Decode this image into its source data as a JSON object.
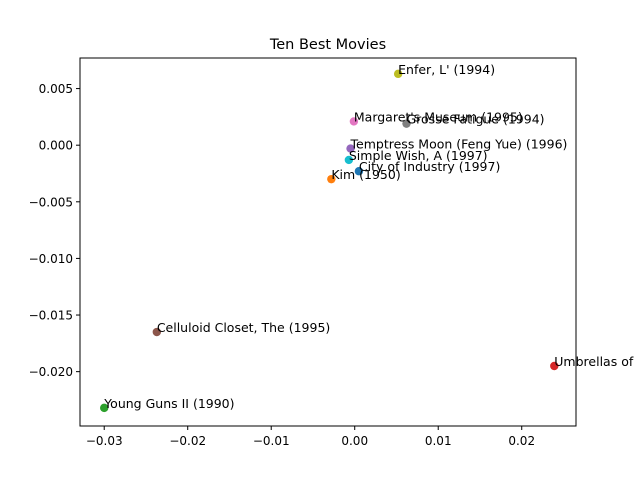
{
  "chart_data": {
    "type": "scatter",
    "title": "Ten Best Movies",
    "xlabel": "",
    "ylabel": "",
    "xlim": [
      -0.0329,
      0.0265
    ],
    "ylim": [
      -0.0248,
      0.0077
    ],
    "xticks": [
      {
        "value": -0.03,
        "label": "−0.03"
      },
      {
        "value": -0.02,
        "label": "−0.02"
      },
      {
        "value": -0.01,
        "label": "−0.01"
      },
      {
        "value": 0.0,
        "label": "0.00"
      },
      {
        "value": 0.01,
        "label": "0.01"
      },
      {
        "value": 0.02,
        "label": "0.02"
      }
    ],
    "yticks": [
      {
        "value": 0.005,
        "label": "0.005"
      },
      {
        "value": 0.0,
        "label": "0.000"
      },
      {
        "value": -0.005,
        "label": "−0.005"
      },
      {
        "value": -0.01,
        "label": "−0.010"
      },
      {
        "value": -0.015,
        "label": "−0.015"
      },
      {
        "value": -0.02,
        "label": "−0.020"
      }
    ],
    "grid": false,
    "legend": "none",
    "points": [
      {
        "label": "City of Industry (1997)",
        "x": 0.0005,
        "y": -0.0023,
        "color": "#1f77b4"
      },
      {
        "label": "Kim (1950)",
        "x": -0.0028,
        "y": -0.003,
        "color": "#ff7f0e"
      },
      {
        "label": "Young Guns II (1990)",
        "x": -0.03,
        "y": -0.0232,
        "color": "#2ca02c"
      },
      {
        "label": "Umbrellas of",
        "x": 0.0239,
        "y": -0.0195,
        "color": "#d62728"
      },
      {
        "label": "Temptress Moon (Feng Yue) (1996)",
        "x": -0.0005,
        "y": -0.0003,
        "color": "#9467bd"
      },
      {
        "label": "Celluloid Closet, The (1995)",
        "x": -0.0237,
        "y": -0.0165,
        "color": "#8c564b"
      },
      {
        "label": "Margaret's Museum (1995)",
        "x": -0.0001,
        "y": 0.0021,
        "color": "#e377c2"
      },
      {
        "label": "Grosse Fatigue (1994)",
        "x": 0.0062,
        "y": 0.0019,
        "color": "#7f7f7f"
      },
      {
        "label": "Enfer, L' (1994)",
        "x": 0.0052,
        "y": 0.0063,
        "color": "#bcbd22"
      },
      {
        "label": "Simple Wish, A (1997)",
        "x": -0.0007,
        "y": -0.0013,
        "color": "#17becf"
      }
    ]
  }
}
